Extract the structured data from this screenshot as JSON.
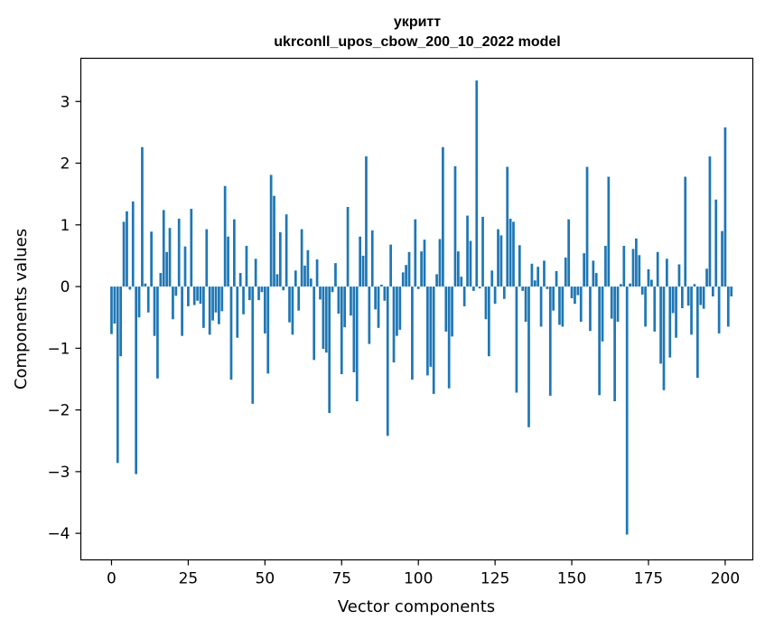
{
  "chart_data": {
    "type": "bar",
    "title": "укритт",
    "subtitle": "ukrconll_upos_cbow_200_10_2022 model",
    "xlabel": "Vector components",
    "ylabel": "Components values",
    "xlim": [
      -10,
      209
    ],
    "ylim": [
      -4.43,
      3.7
    ],
    "xticks": [
      0,
      25,
      50,
      75,
      100,
      125,
      150,
      175,
      200
    ],
    "yticks": [
      -4,
      -3,
      -2,
      -1,
      0,
      1,
      2,
      3
    ],
    "ytick_labels": [
      "−4",
      "−3",
      "−2",
      "−1",
      "0",
      "1",
      "2",
      "3"
    ],
    "grid": false,
    "color": "#1f77b4",
    "series": [
      {
        "name": "values",
        "x_start": 0,
        "values": [
          -0.77,
          -0.6,
          -2.86,
          -1.13,
          1.05,
          1.22,
          -0.05,
          1.38,
          -3.04,
          -0.5,
          2.26,
          0.05,
          -0.42,
          0.89,
          -0.8,
          -1.49,
          0.22,
          1.24,
          0.56,
          0.95,
          -0.53,
          -0.15,
          1.1,
          -0.8,
          0.65,
          -0.32,
          1.26,
          -0.3,
          -0.23,
          -0.28,
          -0.67,
          0.93,
          -0.78,
          -0.55,
          -0.42,
          -0.61,
          -0.4,
          1.63,
          0.81,
          -1.51,
          1.09,
          -0.83,
          0.22,
          -0.45,
          0.66,
          -0.22,
          -1.9,
          0.45,
          -0.22,
          -0.09,
          -0.76,
          -1.41,
          1.81,
          1.47,
          0.2,
          0.88,
          -0.06,
          1.17,
          -0.58,
          -0.78,
          0.26,
          -0.39,
          0.93,
          0.34,
          0.59,
          0.13,
          -1.19,
          0.44,
          -0.21,
          -1.01,
          -1.07,
          -2.05,
          -0.09,
          0.38,
          -0.44,
          -1.42,
          -0.66,
          1.29,
          -0.47,
          -1.39,
          -1.86,
          0.81,
          0.5,
          2.11,
          -0.93,
          0.91,
          -0.37,
          -0.67,
          0.03,
          -0.23,
          -2.42,
          0.68,
          -1.23,
          -0.8,
          -0.7,
          0.23,
          0.35,
          0.56,
          -1.51,
          1.09,
          -0.04,
          0.57,
          0.76,
          -1.44,
          -1.3,
          -1.74,
          0.2,
          0.77,
          2.26,
          -0.73,
          -1.65,
          -0.81,
          1.95,
          0.57,
          0.16,
          -0.32,
          1.15,
          0.74,
          -0.07,
          3.34,
          -0.03,
          1.13,
          -0.53,
          -1.13,
          0.26,
          -0.28,
          0.93,
          0.83,
          -0.2,
          1.94,
          1.1,
          1.05,
          -1.72,
          0.67,
          -0.07,
          -0.57,
          -2.28,
          0.37,
          0.1,
          0.32,
          -0.65,
          0.42,
          -0.04,
          -1.77,
          -0.39,
          0.25,
          -0.62,
          -0.65,
          0.47,
          1.09,
          -0.19,
          -0.28,
          -0.14,
          -0.57,
          0.54,
          1.94,
          -0.72,
          0.42,
          0.22,
          -1.76,
          -0.89,
          0.66,
          1.78,
          -0.52,
          -1.86,
          -0.57,
          0.04,
          0.66,
          -4.02,
          0.05,
          0.61,
          0.78,
          0.51,
          -0.13,
          -0.65,
          0.28,
          0.11,
          -0.73,
          0.56,
          -1.25,
          -1.68,
          0.45,
          -1.15,
          -0.43,
          -0.83,
          0.36,
          -0.35,
          1.78,
          -0.31,
          -0.78,
          0.04,
          -1.48,
          -0.3,
          -0.36,
          0.29,
          2.11,
          -0.16,
          1.41,
          -0.76,
          0.9,
          2.58,
          -0.65,
          -0.16
        ]
      }
    ]
  }
}
